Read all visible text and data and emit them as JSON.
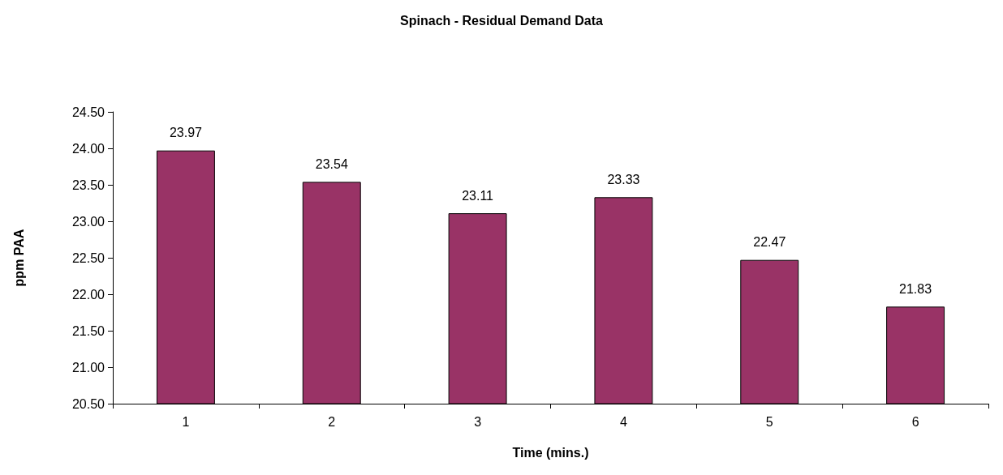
{
  "chart_data": {
    "type": "bar",
    "title": "Spinach - Residual Demand Data",
    "xlabel": "Time (mins.)",
    "ylabel": "ppm PAA",
    "categories": [
      "1",
      "2",
      "3",
      "4",
      "5",
      "6"
    ],
    "values": [
      23.97,
      23.54,
      23.11,
      23.33,
      22.47,
      21.83
    ],
    "color": "#993366",
    "ylim": [
      20.5,
      24.5
    ],
    "yticks": [
      {
        "value": 20.5,
        "label": "20.50"
      },
      {
        "value": 21,
        "label": "21.00"
      },
      {
        "value": 21.5,
        "label": "21.50"
      },
      {
        "value": 22,
        "label": "22.00"
      },
      {
        "value": 22.5,
        "label": "22.50"
      },
      {
        "value": 23,
        "label": "23.00"
      },
      {
        "value": 23.5,
        "label": "23.50"
      },
      {
        "value": 24,
        "label": "24.00"
      },
      {
        "value": 24.5,
        "label": "24.50"
      }
    ],
    "data_labels": true
  }
}
